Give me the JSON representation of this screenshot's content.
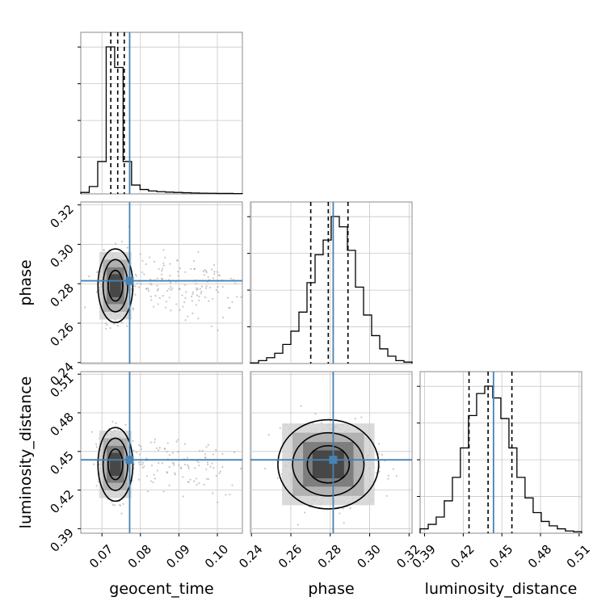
{
  "chart_data": {
    "type": "corner",
    "parameters": [
      "geocent_time",
      "phase",
      "luminosity_distance"
    ],
    "truths": {
      "geocent_time": 0.0772,
      "phase": 0.2815,
      "luminosity_distance": 0.4435
    },
    "quantiles": {
      "geocent_time": [
        0.0723,
        0.0741,
        0.0758
      ],
      "phase": [
        0.2701,
        0.279,
        0.289
      ],
      "luminosity_distance": [
        0.4245,
        0.4393,
        0.4578
      ]
    },
    "ranges": {
      "geocent_time": [
        0.0645,
        0.1065
      ],
      "phase": [
        0.2395,
        0.3215
      ],
      "luminosity_distance": [
        0.3865,
        0.512
      ]
    },
    "ticks": {
      "geocent_time": [
        {
          "v": 0.07,
          "label": "0.07"
        },
        {
          "v": 0.08,
          "label": "0.08"
        },
        {
          "v": 0.09,
          "label": "0.09"
        },
        {
          "v": 0.1,
          "label": "0.10"
        }
      ],
      "phase": [
        {
          "v": 0.24,
          "label": "0.24"
        },
        {
          "v": 0.26,
          "label": "0.26"
        },
        {
          "v": 0.28,
          "label": "0.28"
        },
        {
          "v": 0.3,
          "label": "0.30"
        },
        {
          "v": 0.32,
          "label": "0.32"
        }
      ],
      "luminosity_distance": [
        {
          "v": 0.39,
          "label": "0.39"
        },
        {
          "v": 0.42,
          "label": "0.42"
        },
        {
          "v": 0.45,
          "label": "0.45"
        },
        {
          "v": 0.48,
          "label": "0.48"
        },
        {
          "v": 0.51,
          "label": "0.51"
        }
      ]
    },
    "histograms": {
      "geocent_time": {
        "bin_edges": [
          0.0645,
          0.0667,
          0.0689,
          0.0711,
          0.0733,
          0.0755,
          0.0777,
          0.0799,
          0.0821,
          0.0843,
          0.0865,
          0.0887,
          0.0909,
          0.0931,
          0.0953,
          0.0975,
          0.0997,
          0.1019,
          0.1041,
          0.1065
        ],
        "counts": [
          0.01,
          0.05,
          0.22,
          1.0,
          0.86,
          0.22,
          0.06,
          0.03,
          0.02,
          0.015,
          0.012,
          0.01,
          0.008,
          0.006,
          0.005,
          0.004,
          0.003,
          0.003,
          0.002
        ]
      },
      "phase": {
        "bin_edges": [
          0.2395,
          0.2436,
          0.2477,
          0.2518,
          0.2559,
          0.26,
          0.2641,
          0.2682,
          0.2723,
          0.2764,
          0.2805,
          0.2846,
          0.2887,
          0.2928,
          0.2969,
          0.301,
          0.3051,
          0.3092,
          0.3133,
          0.3174,
          0.3215
        ],
        "counts": [
          0.005,
          0.02,
          0.04,
          0.07,
          0.13,
          0.22,
          0.35,
          0.55,
          0.74,
          0.84,
          1.0,
          0.93,
          0.77,
          0.52,
          0.33,
          0.19,
          0.1,
          0.05,
          0.02,
          0.01
        ]
      },
      "luminosity_distance": {
        "bin_edges": [
          0.3865,
          0.3928,
          0.399,
          0.4053,
          0.4116,
          0.4178,
          0.4241,
          0.4304,
          0.4367,
          0.4429,
          0.4492,
          0.4555,
          0.4617,
          0.468,
          0.4743,
          0.4806,
          0.4868,
          0.4931,
          0.4994,
          0.5057,
          0.512
        ],
        "counts": [
          0.03,
          0.06,
          0.11,
          0.22,
          0.38,
          0.58,
          0.8,
          0.95,
          1.0,
          0.92,
          0.78,
          0.58,
          0.38,
          0.24,
          0.14,
          0.08,
          0.05,
          0.03,
          0.015,
          0.01
        ]
      }
    },
    "contour_centers": {
      "geocent_time|phase": [
        0.0735,
        0.279
      ],
      "geocent_time|luminosity_distance": [
        0.0735,
        0.44
      ],
      "phase|luminosity_distance": [
        0.279,
        0.44
      ]
    },
    "colors": {
      "truth": "#4682b4",
      "hist": "#000000",
      "grid": "#c8c8c8",
      "points": "#9a9a9a"
    }
  }
}
